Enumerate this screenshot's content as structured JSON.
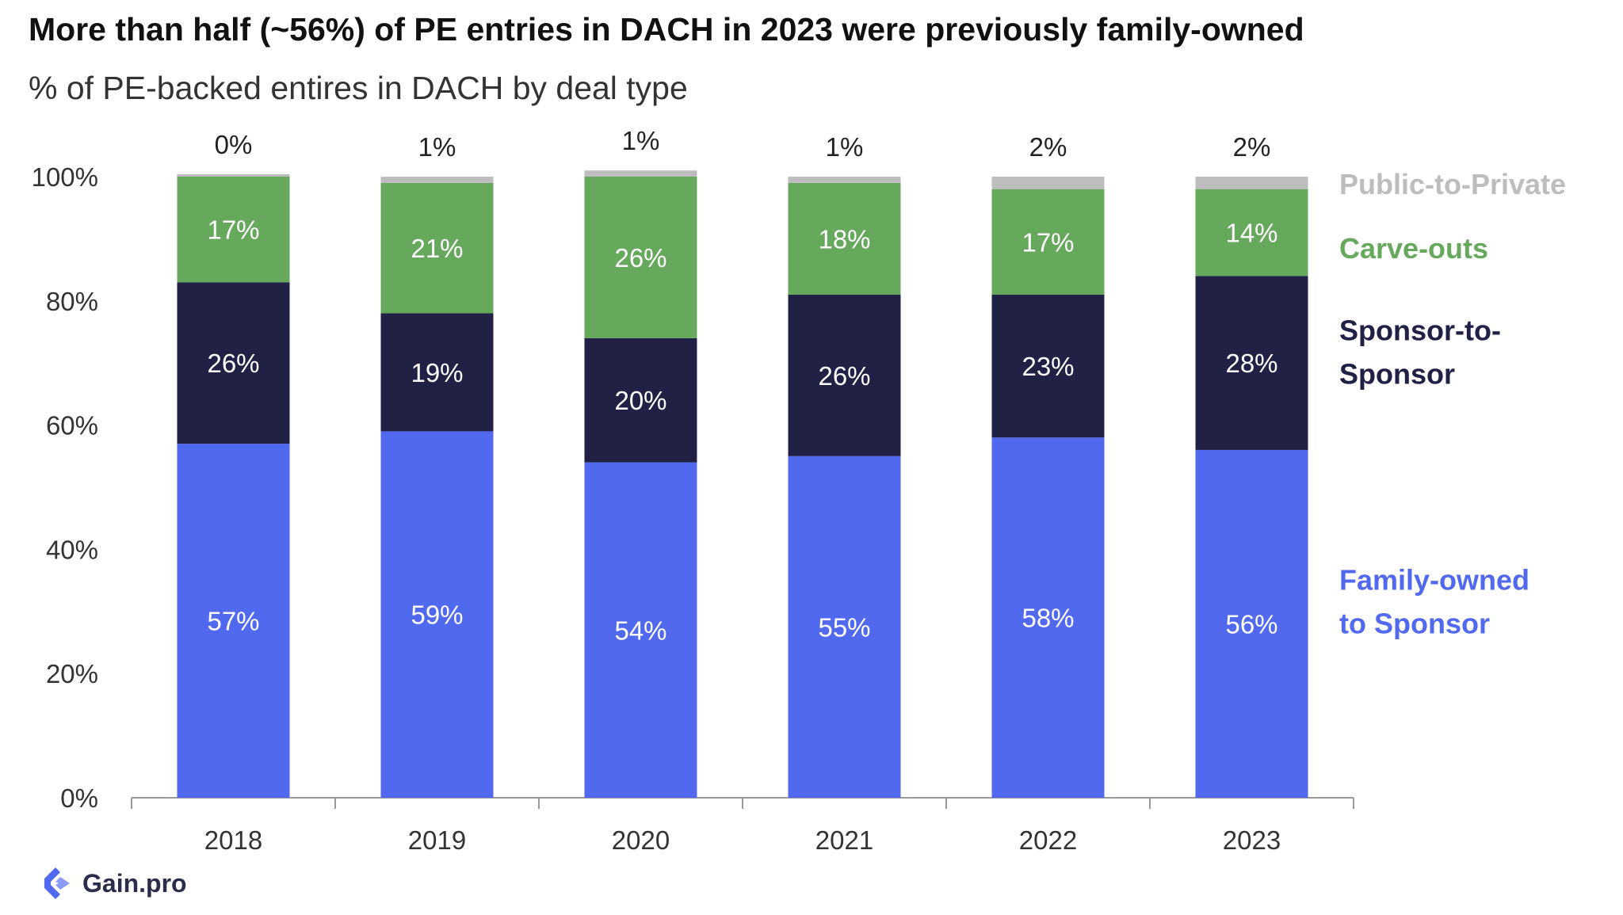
{
  "title": "More than half (~56%) of PE entries in DACH in 2023 were previously family-owned",
  "subtitle": "% of PE-backed entires in DACH by deal type",
  "brand": {
    "name": "Gain.pro"
  },
  "colors": {
    "family": "#5069ee",
    "sponsor": "#212146",
    "carve": "#66a85c",
    "public": "#bdbdbd",
    "axis": "#999999",
    "text": "#333333"
  },
  "chart_data": {
    "type": "bar",
    "stacked": true,
    "categories": [
      "2018",
      "2019",
      "2020",
      "2021",
      "2022",
      "2023"
    ],
    "y_tick_labels": [
      "0%",
      "20%",
      "40%",
      "60%",
      "80%",
      "100%"
    ],
    "ylim": [
      0,
      100
    ],
    "grid": false,
    "legend_placement": "right",
    "series": [
      {
        "name": "Family-owned to Sponsor",
        "legend_lines": [
          "Family-owned",
          "to Sponsor"
        ],
        "color": "#5069ee",
        "label_color": "#ffffff",
        "values": [
          57,
          59,
          54,
          55,
          58,
          56
        ],
        "labels": [
          "57%",
          "59%",
          "54%",
          "55%",
          "58%",
          "56%"
        ]
      },
      {
        "name": "Sponsor-to-Sponsor",
        "legend_lines": [
          "Sponsor-to-",
          "Sponsor"
        ],
        "color": "#212146",
        "label_color": "#ffffff",
        "values": [
          26,
          19,
          20,
          26,
          23,
          28
        ],
        "labels": [
          "26%",
          "19%",
          "20%",
          "26%",
          "23%",
          "28%"
        ]
      },
      {
        "name": "Carve-outs",
        "legend_lines": [
          "Carve-outs"
        ],
        "color": "#66a85c",
        "label_color": "#ffffff",
        "values": [
          17,
          21,
          26,
          18,
          17,
          14
        ],
        "labels": [
          "17%",
          "21%",
          "26%",
          "18%",
          "17%",
          "14%"
        ]
      },
      {
        "name": "Public-to-Private",
        "legend_lines": [
          "Public-to-Private"
        ],
        "color": "#bdbdbd",
        "label_color": "#222222",
        "values": [
          0.4,
          1,
          1,
          1,
          2,
          2
        ],
        "labels": [
          "0%",
          "1%",
          "1%",
          "1%",
          "2%",
          "2%"
        ]
      }
    ]
  }
}
